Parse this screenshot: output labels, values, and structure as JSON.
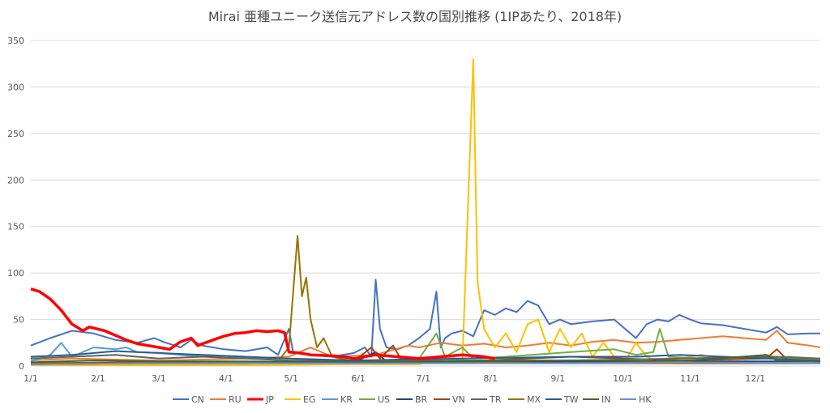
{
  "chart_data": {
    "type": "line",
    "title": "Mirai 亜種ユニーク送信元アドレス数の国別推移 (1IPあたり、2018年)",
    "xlabel": "",
    "ylabel": "",
    "ylim": [
      0,
      350
    ],
    "yticks": [
      "0",
      "50",
      "100",
      "150",
      "200",
      "250",
      "300",
      "350"
    ],
    "xlim": [
      1,
      365
    ],
    "xticks": [
      {
        "label": "1/1",
        "day": 1
      },
      {
        "label": "2/1",
        "day": 32
      },
      {
        "label": "3/1",
        "day": 60
      },
      {
        "label": "4/1",
        "day": 91
      },
      {
        "label": "5/1",
        "day": 121
      },
      {
        "label": "6/1",
        "day": 152
      },
      {
        "label": "7/1",
        "day": 182
      },
      {
        "label": "8/1",
        "day": 213
      },
      {
        "label": "9/1",
        "day": 244
      },
      {
        "label": "10/1",
        "day": 274
      },
      {
        "label": "11/1",
        "day": 305
      },
      {
        "label": "12/1",
        "day": 335
      }
    ],
    "grid": true,
    "legend_position": "bottom",
    "series": [
      {
        "name": "CN",
        "color": "#4472c4",
        "width": 2,
        "points": [
          [
            1,
            22
          ],
          [
            10,
            30
          ],
          [
            20,
            38
          ],
          [
            30,
            35
          ],
          [
            40,
            28
          ],
          [
            50,
            25
          ],
          [
            58,
            30
          ],
          [
            62,
            26
          ],
          [
            70,
            20
          ],
          [
            75,
            28
          ],
          [
            80,
            22
          ],
          [
            90,
            18
          ],
          [
            100,
            16
          ],
          [
            110,
            20
          ],
          [
            115,
            12
          ],
          [
            120,
            40
          ],
          [
            122,
            14
          ],
          [
            130,
            12
          ],
          [
            140,
            10
          ],
          [
            150,
            14
          ],
          [
            155,
            20
          ],
          [
            158,
            10
          ],
          [
            160,
            93
          ],
          [
            162,
            40
          ],
          [
            165,
            20
          ],
          [
            170,
            18
          ],
          [
            175,
            22
          ],
          [
            180,
            30
          ],
          [
            185,
            40
          ],
          [
            188,
            80
          ],
          [
            190,
            20
          ],
          [
            192,
            30
          ],
          [
            195,
            35
          ],
          [
            200,
            38
          ],
          [
            205,
            32
          ],
          [
            210,
            60
          ],
          [
            215,
            55
          ],
          [
            220,
            62
          ],
          [
            225,
            58
          ],
          [
            230,
            70
          ],
          [
            235,
            65
          ],
          [
            240,
            45
          ],
          [
            245,
            50
          ],
          [
            250,
            45
          ],
          [
            260,
            48
          ],
          [
            270,
            50
          ],
          [
            275,
            40
          ],
          [
            280,
            30
          ],
          [
            285,
            45
          ],
          [
            290,
            50
          ],
          [
            295,
            48
          ],
          [
            300,
            55
          ],
          [
            305,
            50
          ],
          [
            310,
            46
          ],
          [
            320,
            44
          ],
          [
            330,
            40
          ],
          [
            340,
            36
          ],
          [
            345,
            42
          ],
          [
            350,
            34
          ],
          [
            360,
            35
          ],
          [
            365,
            35
          ]
        ]
      },
      {
        "name": "RU",
        "color": "#ed7d31",
        "width": 2,
        "points": [
          [
            1,
            6
          ],
          [
            20,
            8
          ],
          [
            40,
            7
          ],
          [
            60,
            6
          ],
          [
            80,
            7
          ],
          [
            100,
            8
          ],
          [
            120,
            10
          ],
          [
            130,
            20
          ],
          [
            140,
            10
          ],
          [
            160,
            12
          ],
          [
            175,
            22
          ],
          [
            180,
            20
          ],
          [
            190,
            25
          ],
          [
            200,
            22
          ],
          [
            210,
            24
          ],
          [
            220,
            20
          ],
          [
            230,
            22
          ],
          [
            240,
            25
          ],
          [
            250,
            22
          ],
          [
            260,
            26
          ],
          [
            270,
            28
          ],
          [
            280,
            25
          ],
          [
            290,
            26
          ],
          [
            300,
            28
          ],
          [
            310,
            30
          ],
          [
            320,
            32
          ],
          [
            330,
            30
          ],
          [
            340,
            28
          ],
          [
            345,
            38
          ],
          [
            350,
            25
          ],
          [
            360,
            22
          ],
          [
            365,
            20
          ]
        ]
      },
      {
        "name": "JP",
        "color": "#ff0000",
        "width": 3.5,
        "points": [
          [
            1,
            83
          ],
          [
            5,
            80
          ],
          [
            10,
            72
          ],
          [
            15,
            60
          ],
          [
            20,
            45
          ],
          [
            25,
            38
          ],
          [
            28,
            42
          ],
          [
            35,
            38
          ],
          [
            40,
            33
          ],
          [
            45,
            28
          ],
          [
            50,
            24
          ],
          [
            55,
            22
          ],
          [
            60,
            20
          ],
          [
            65,
            18
          ],
          [
            70,
            26
          ],
          [
            75,
            30
          ],
          [
            78,
            22
          ],
          [
            85,
            28
          ],
          [
            90,
            32
          ],
          [
            95,
            35
          ],
          [
            100,
            36
          ],
          [
            105,
            38
          ],
          [
            110,
            37
          ],
          [
            115,
            38
          ],
          [
            118,
            36
          ],
          [
            120,
            15
          ],
          [
            125,
            14
          ],
          [
            130,
            12
          ],
          [
            140,
            11
          ],
          [
            145,
            10
          ],
          [
            150,
            8
          ],
          [
            160,
            12
          ],
          [
            170,
            10
          ],
          [
            180,
            8
          ],
          [
            190,
            10
          ],
          [
            200,
            12
          ],
          [
            210,
            10
          ],
          [
            215,
            8
          ]
        ]
      },
      {
        "name": "EG",
        "color": "#ffc000",
        "width": 2,
        "points": [
          [
            1,
            1
          ],
          [
            100,
            1
          ],
          [
            150,
            2
          ],
          [
            180,
            2
          ],
          [
            195,
            10
          ],
          [
            200,
            5
          ],
          [
            205,
            330
          ],
          [
            207,
            90
          ],
          [
            210,
            40
          ],
          [
            215,
            20
          ],
          [
            220,
            35
          ],
          [
            225,
            15
          ],
          [
            230,
            45
          ],
          [
            235,
            50
          ],
          [
            240,
            15
          ],
          [
            245,
            40
          ],
          [
            250,
            20
          ],
          [
            255,
            35
          ],
          [
            260,
            10
          ],
          [
            265,
            25
          ],
          [
            270,
            10
          ],
          [
            275,
            5
          ],
          [
            280,
            25
          ],
          [
            285,
            10
          ],
          [
            290,
            5
          ],
          [
            300,
            8
          ],
          [
            310,
            12
          ],
          [
            320,
            8
          ],
          [
            330,
            10
          ],
          [
            340,
            12
          ],
          [
            350,
            8
          ],
          [
            360,
            8
          ],
          [
            365,
            6
          ]
        ]
      },
      {
        "name": "KR",
        "color": "#5b9bd5",
        "width": 2,
        "points": [
          [
            1,
            5
          ],
          [
            10,
            12
          ],
          [
            15,
            25
          ],
          [
            20,
            10
          ],
          [
            30,
            20
          ],
          [
            40,
            18
          ],
          [
            45,
            20
          ],
          [
            50,
            15
          ],
          [
            60,
            14
          ],
          [
            70,
            12
          ],
          [
            80,
            10
          ],
          [
            90,
            11
          ],
          [
            100,
            9
          ],
          [
            110,
            8
          ],
          [
            120,
            5
          ],
          [
            150,
            4
          ],
          [
            200,
            4
          ],
          [
            250,
            4
          ],
          [
            300,
            3
          ],
          [
            365,
            3
          ]
        ]
      },
      {
        "name": "US",
        "color": "#70ad47",
        "width": 2,
        "points": [
          [
            1,
            3
          ],
          [
            50,
            4
          ],
          [
            100,
            4
          ],
          [
            150,
            5
          ],
          [
            180,
            8
          ],
          [
            188,
            35
          ],
          [
            192,
            10
          ],
          [
            200,
            20
          ],
          [
            205,
            8
          ],
          [
            220,
            10
          ],
          [
            250,
            15
          ],
          [
            270,
            18
          ],
          [
            280,
            12
          ],
          [
            288,
            15
          ],
          [
            291,
            40
          ],
          [
            295,
            10
          ],
          [
            310,
            8
          ],
          [
            330,
            8
          ],
          [
            350,
            10
          ],
          [
            365,
            8
          ]
        ]
      },
      {
        "name": "BR",
        "color": "#264478",
        "width": 2,
        "points": [
          [
            1,
            2
          ],
          [
            50,
            3
          ],
          [
            100,
            3
          ],
          [
            150,
            4
          ],
          [
            160,
            15
          ],
          [
            165,
            5
          ],
          [
            200,
            4
          ],
          [
            250,
            5
          ],
          [
            300,
            5
          ],
          [
            365,
            5
          ]
        ]
      },
      {
        "name": "VN",
        "color": "#9e480e",
        "width": 2,
        "points": [
          [
            1,
            3
          ],
          [
            50,
            4
          ],
          [
            100,
            3
          ],
          [
            150,
            5
          ],
          [
            158,
            20
          ],
          [
            162,
            8
          ],
          [
            168,
            22
          ],
          [
            172,
            6
          ],
          [
            200,
            5
          ],
          [
            230,
            8
          ],
          [
            250,
            10
          ],
          [
            300,
            6
          ],
          [
            340,
            8
          ],
          [
            345,
            18
          ],
          [
            350,
            6
          ],
          [
            365,
            5
          ]
        ]
      },
      {
        "name": "TR",
        "color": "#636363",
        "width": 2,
        "points": [
          [
            1,
            8
          ],
          [
            20,
            10
          ],
          [
            40,
            12
          ],
          [
            60,
            8
          ],
          [
            80,
            10
          ],
          [
            100,
            8
          ],
          [
            120,
            6
          ],
          [
            160,
            5
          ],
          [
            200,
            6
          ],
          [
            250,
            6
          ],
          [
            300,
            8
          ],
          [
            340,
            10
          ],
          [
            365,
            8
          ]
        ]
      },
      {
        "name": "MX",
        "color": "#997300",
        "width": 2,
        "points": [
          [
            1,
            2
          ],
          [
            50,
            3
          ],
          [
            100,
            3
          ],
          [
            115,
            5
          ],
          [
            120,
            20
          ],
          [
            124,
            140
          ],
          [
            126,
            75
          ],
          [
            128,
            95
          ],
          [
            130,
            50
          ],
          [
            133,
            20
          ],
          [
            136,
            30
          ],
          [
            140,
            10
          ],
          [
            150,
            5
          ],
          [
            200,
            4
          ],
          [
            250,
            3
          ],
          [
            300,
            3
          ],
          [
            365,
            3
          ]
        ]
      },
      {
        "name": "TW",
        "color": "#255e91",
        "width": 2,
        "points": [
          [
            1,
            10
          ],
          [
            20,
            12
          ],
          [
            40,
            16
          ],
          [
            60,
            14
          ],
          [
            80,
            12
          ],
          [
            100,
            10
          ],
          [
            120,
            8
          ],
          [
            150,
            6
          ],
          [
            200,
            8
          ],
          [
            250,
            10
          ],
          [
            280,
            10
          ],
          [
            300,
            12
          ],
          [
            340,
            8
          ],
          [
            365,
            6
          ]
        ]
      },
      {
        "name": "IN",
        "color": "#43682b",
        "width": 2,
        "points": [
          [
            1,
            4
          ],
          [
            30,
            6
          ],
          [
            60,
            5
          ],
          [
            100,
            5
          ],
          [
            150,
            4
          ],
          [
            200,
            5
          ],
          [
            250,
            6
          ],
          [
            300,
            5
          ],
          [
            340,
            12
          ],
          [
            345,
            6
          ],
          [
            365,
            5
          ]
        ]
      },
      {
        "name": "HK",
        "color": "#698ed0",
        "width": 2,
        "points": [
          [
            1,
            2
          ],
          [
            50,
            3
          ],
          [
            100,
            3
          ],
          [
            150,
            3
          ],
          [
            200,
            3
          ],
          [
            250,
            3
          ],
          [
            300,
            4
          ],
          [
            365,
            3
          ]
        ]
      }
    ]
  }
}
